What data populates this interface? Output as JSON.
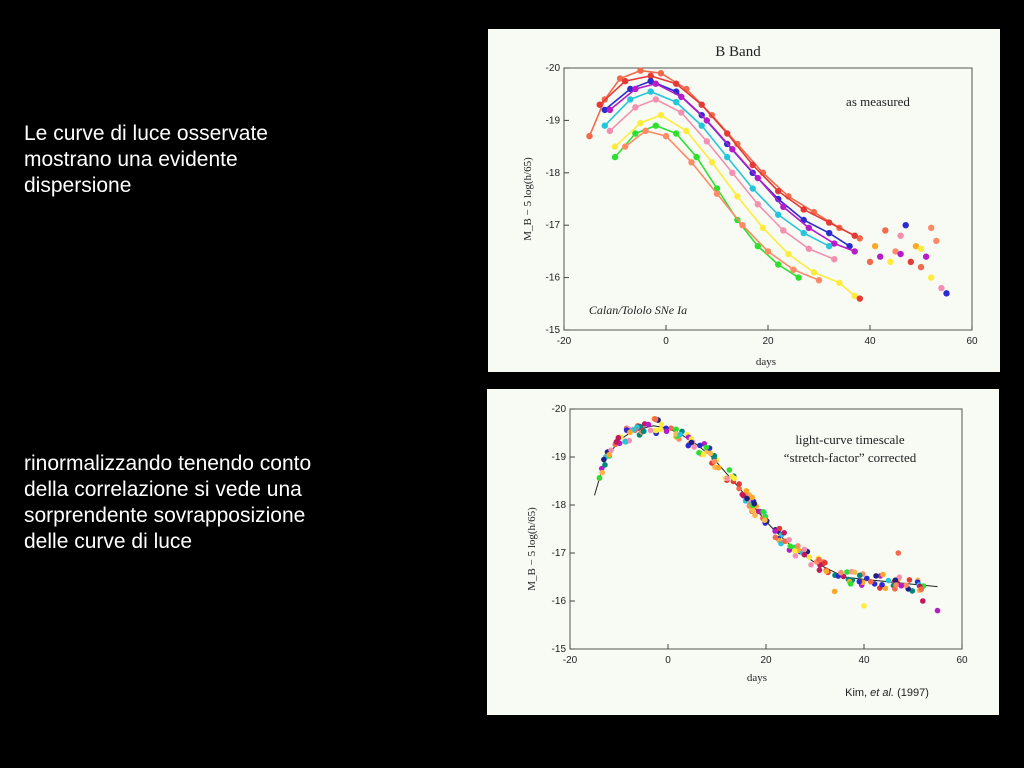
{
  "slide": {
    "text1": "Le curve di luce osservate\nmostrano una evidente\ndispersione",
    "text2": "rinormalizzando tenendo conto\ndella correlazione  si vede una\nsorprendente sovrapposizione\ndelle curve di luce"
  },
  "chart_data": [
    {
      "type": "scatter",
      "title": "B Band",
      "annotation": "as measured",
      "caption": "Calan/Tololo SNe Ia",
      "xlabel": "days",
      "ylabel": "M_B − 5 log(h/65)",
      "xlim": [
        -20,
        60
      ],
      "ylim": [
        -15,
        -20
      ],
      "y_inverted": true,
      "xticks": [
        -20,
        0,
        20,
        40,
        60
      ],
      "yticks": [
        -20,
        -19,
        -18,
        -17,
        -16,
        -15
      ],
      "series": [
        {
          "color": "#f26a4b",
          "peak": -19.95,
          "points": [
            [
              -15,
              -18.7
            ],
            [
              -12,
              -19.4
            ],
            [
              -9,
              -19.8
            ],
            [
              -5,
              -19.95
            ],
            [
              -1,
              -19.9
            ],
            [
              4,
              -19.6
            ],
            [
              9,
              -19.1
            ],
            [
              14,
              -18.55
            ],
            [
              19,
              -18.0
            ],
            [
              24,
              -17.55
            ],
            [
              29,
              -17.25
            ],
            [
              34,
              -16.95
            ],
            [
              38,
              -16.75
            ]
          ]
        },
        {
          "color": "#e53935",
          "peak": -19.85,
          "points": [
            [
              -13,
              -19.3
            ],
            [
              -8,
              -19.75
            ],
            [
              -3,
              -19.85
            ],
            [
              2,
              -19.7
            ],
            [
              7,
              -19.3
            ],
            [
              12,
              -18.75
            ],
            [
              17,
              -18.15
            ],
            [
              22,
              -17.65
            ],
            [
              27,
              -17.3
            ],
            [
              32,
              -17.05
            ],
            [
              37,
              -16.8
            ]
          ]
        },
        {
          "color": "#2b2bd0",
          "peak": -19.75,
          "points": [
            [
              -12,
              -19.2
            ],
            [
              -7,
              -19.6
            ],
            [
              -3,
              -19.75
            ],
            [
              2,
              -19.55
            ],
            [
              7,
              -19.1
            ],
            [
              12,
              -18.55
            ],
            [
              17,
              -18.0
            ],
            [
              22,
              -17.5
            ],
            [
              27,
              -17.1
            ],
            [
              32,
              -16.85
            ],
            [
              36,
              -16.6
            ]
          ]
        },
        {
          "color": "#b71cc9",
          "peak": -19.7,
          "points": [
            [
              -11,
              -19.2
            ],
            [
              -6,
              -19.6
            ],
            [
              -2,
              -19.7
            ],
            [
              3,
              -19.45
            ],
            [
              8,
              -19.0
            ],
            [
              13,
              -18.45
            ],
            [
              18,
              -17.9
            ],
            [
              23,
              -17.35
            ],
            [
              28,
              -16.95
            ],
            [
              33,
              -16.65
            ],
            [
              37,
              -16.5
            ]
          ]
        },
        {
          "color": "#26c6da",
          "peak": -19.55,
          "points": [
            [
              -12,
              -18.9
            ],
            [
              -7,
              -19.4
            ],
            [
              -3,
              -19.55
            ],
            [
              2,
              -19.35
            ],
            [
              7,
              -18.9
            ],
            [
              12,
              -18.3
            ],
            [
              17,
              -17.7
            ],
            [
              22,
              -17.2
            ],
            [
              27,
              -16.85
            ],
            [
              32,
              -16.6
            ]
          ]
        },
        {
          "color": "#f48fb1",
          "peak": -19.4,
          "points": [
            [
              -11,
              -18.8
            ],
            [
              -6,
              -19.25
            ],
            [
              -2,
              -19.4
            ],
            [
              3,
              -19.15
            ],
            [
              8,
              -18.6
            ],
            [
              13,
              -18.0
            ],
            [
              18,
              -17.4
            ],
            [
              23,
              -16.9
            ],
            [
              28,
              -16.55
            ],
            [
              33,
              -16.35
            ]
          ]
        },
        {
          "color": "#ffeb3b",
          "peak": -19.1,
          "points": [
            [
              -10,
              -18.5
            ],
            [
              -5,
              -18.95
            ],
            [
              -1,
              -19.1
            ],
            [
              4,
              -18.8
            ],
            [
              9,
              -18.2
            ],
            [
              14,
              -17.55
            ],
            [
              19,
              -16.95
            ],
            [
              24,
              -16.45
            ],
            [
              29,
              -16.1
            ],
            [
              34,
              -15.9
            ],
            [
              37,
              -15.65
            ]
          ]
        },
        {
          "color": "#2ee02e",
          "peak": -18.9,
          "points": [
            [
              -10,
              -18.3
            ],
            [
              -6,
              -18.75
            ],
            [
              -2,
              -18.9
            ],
            [
              2,
              -18.75
            ],
            [
              6,
              -18.3
            ],
            [
              10,
              -17.7
            ],
            [
              14,
              -17.1
            ],
            [
              18,
              -16.6
            ],
            [
              22,
              -16.25
            ],
            [
              26,
              -16.0
            ]
          ]
        },
        {
          "color": "#ff8a65",
          "peak": -18.8,
          "points": [
            [
              -8,
              -18.5
            ],
            [
              -4,
              -18.8
            ],
            [
              0,
              -18.7
            ],
            [
              5,
              -18.2
            ],
            [
              10,
              -17.6
            ],
            [
              15,
              -17.0
            ],
            [
              20,
              -16.5
            ],
            [
              25,
              -16.15
            ],
            [
              30,
              -15.95
            ]
          ]
        }
      ],
      "late_points": [
        [
          40,
          -16.3
        ],
        [
          42,
          -16.4
        ],
        [
          44,
          -16.3
        ],
        [
          45,
          -16.5
        ],
        [
          46,
          -16.8
        ],
        [
          47,
          -17.0
        ],
        [
          48,
          -16.3
        ],
        [
          49,
          -16.6
        ],
        [
          50,
          -16.2
        ],
        [
          51,
          -16.4
        ],
        [
          52,
          -16.0
        ],
        [
          53,
          -16.7
        ],
        [
          54,
          -15.8
        ],
        [
          55,
          -15.7
        ],
        [
          38,
          -15.6
        ],
        [
          41,
          -16.6
        ],
        [
          43,
          -16.9
        ],
        [
          46,
          -16.45
        ],
        [
          50,
          -16.55
        ],
        [
          52,
          -16.95
        ]
      ]
    },
    {
      "type": "scatter",
      "annotation_line1": "light-curve timescale",
      "annotation_line2": "“stretch-factor” corrected",
      "credit_name": "Kim, ",
      "credit_etal": "et al.",
      "credit_year": " (1997)",
      "xlabel": "days",
      "ylabel": "M_B − 5 log(h/65)",
      "xlim": [
        -20,
        60
      ],
      "ylim": [
        -15,
        -20
      ],
      "y_inverted": true,
      "xticks": [
        -20,
        0,
        20,
        40,
        60
      ],
      "yticks": [
        -20,
        -19,
        -18,
        -17,
        -16,
        -15
      ],
      "template": [
        [
          -15,
          -18.2
        ],
        [
          -13,
          -18.9
        ],
        [
          -10,
          -19.35
        ],
        [
          -7,
          -19.55
        ],
        [
          -3,
          -19.65
        ],
        [
          0,
          -19.6
        ],
        [
          3,
          -19.45
        ],
        [
          6,
          -19.25
        ],
        [
          9,
          -19.0
        ],
        [
          12,
          -18.65
        ],
        [
          15,
          -18.3
        ],
        [
          18,
          -17.9
        ],
        [
          21,
          -17.55
        ],
        [
          24,
          -17.25
        ],
        [
          27,
          -17.0
        ],
        [
          30,
          -16.8
        ],
        [
          33,
          -16.65
        ],
        [
          36,
          -16.5
        ],
        [
          40,
          -16.45
        ],
        [
          45,
          -16.4
        ],
        [
          50,
          -16.35
        ],
        [
          55,
          -16.3
        ]
      ],
      "colors": [
        "#f26a4b",
        "#e53935",
        "#2b2bd0",
        "#b71cc9",
        "#26c6da",
        "#f48fb1",
        "#ffeb3b",
        "#2ee02e",
        "#ff8a65",
        "#ffa726",
        "#1a237e",
        "#00897b",
        "#c2185b",
        "#ffb74d"
      ],
      "outliers": [
        [
          47,
          -17.0
        ],
        [
          55,
          -15.8
        ],
        [
          40,
          -15.9
        ],
        [
          34,
          -16.2
        ],
        [
          52,
          -16.0
        ]
      ]
    }
  ]
}
